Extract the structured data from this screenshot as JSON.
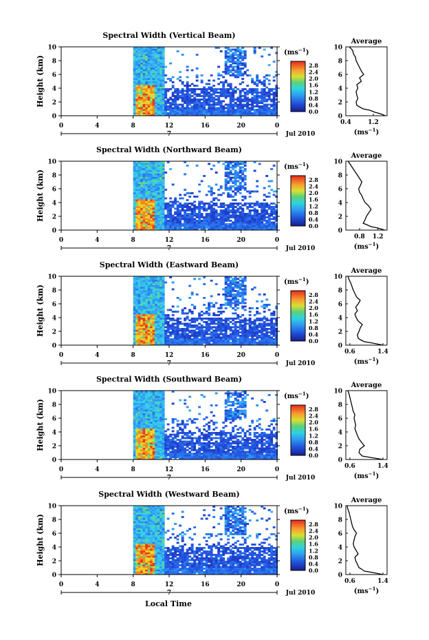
{
  "figure": {
    "x_axis_title": "Local Time",
    "date_label": "Jul 2010",
    "day_marker": "7",
    "unit_label": "(ms",
    "unit_exp": "−1",
    "unit_close": ")",
    "average_title": "Average",
    "colorbar_ticks": [
      "2.8",
      "2.4",
      "2.0",
      "1.6",
      "1.2",
      "0.8",
      "0.4",
      "0.0"
    ]
  },
  "chart_data": [
    {
      "type": "heatmap",
      "title": "Spectral Width (Vertical Beam)",
      "ylabel": "Height (km)",
      "xlabel": "Local Time",
      "x_ticks": [
        "0",
        "4",
        "8",
        "12",
        "16",
        "20",
        "0"
      ],
      "y_ticks": [
        "0",
        "2",
        "4",
        "6",
        "8",
        "10"
      ],
      "xlim": [
        0,
        24
      ],
      "ylim": [
        0,
        10
      ],
      "colorbar": {
        "unit": "ms^-1",
        "range": [
          0.0,
          2.8
        ]
      },
      "data_start_hour": 8.0,
      "profile": {
        "title": "Average",
        "xlabel": "(ms^-1)",
        "x_ticks": [
          "0.4",
          "1.2"
        ],
        "xlim": [
          0.4,
          1.6
        ],
        "ylim": [
          0,
          10
        ],
        "height_km": [
          0.0,
          0.3,
          0.5,
          0.8,
          1.0,
          1.5,
          2.0,
          2.5,
          3.0,
          3.5,
          4.0,
          4.5,
          5.0,
          5.5,
          6.0,
          6.5,
          7.0,
          7.5,
          8.0,
          8.5,
          9.0,
          9.5,
          10.0
        ],
        "width": [
          1.55,
          1.4,
          1.25,
          1.1,
          0.9,
          0.72,
          0.7,
          0.75,
          0.72,
          0.7,
          0.75,
          0.72,
          0.85,
          0.8,
          0.92,
          0.85,
          0.8,
          0.75,
          0.7,
          0.68,
          0.62,
          0.6,
          0.5
        ]
      }
    },
    {
      "type": "heatmap",
      "title": "Spectral Width (Northward Beam)",
      "ylabel": "Height (km)",
      "xlabel": "Local Time",
      "x_ticks": [
        "0",
        "4",
        "8",
        "12",
        "16",
        "20",
        "0"
      ],
      "y_ticks": [
        "0",
        "2",
        "4",
        "6",
        "8",
        "10"
      ],
      "xlim": [
        0,
        24
      ],
      "ylim": [
        0,
        10
      ],
      "colorbar": {
        "unit": "ms^-1",
        "range": [
          0.0,
          2.8
        ]
      },
      "data_start_hour": 8.0,
      "profile": {
        "title": "Average",
        "xlabel": "(ms^-1)",
        "x_ticks": [
          "0.8",
          "1.2"
        ],
        "xlim": [
          0.5,
          1.4
        ],
        "ylim": [
          0,
          10
        ],
        "height_km": [
          0.0,
          0.3,
          0.5,
          0.8,
          1.0,
          1.5,
          2.0,
          2.5,
          3.0,
          3.5,
          4.0,
          4.5,
          5.0,
          5.5,
          6.0,
          6.5,
          7.0,
          7.5,
          8.0,
          8.5,
          9.0,
          9.5,
          10.0
        ],
        "width": [
          1.35,
          1.2,
          1.05,
          0.95,
          0.88,
          0.92,
          0.95,
          1.0,
          1.05,
          1.0,
          0.92,
          0.88,
          0.85,
          0.8,
          0.78,
          0.82,
          0.85,
          0.8,
          0.75,
          0.7,
          0.65,
          0.6,
          0.55
        ]
      }
    },
    {
      "type": "heatmap",
      "title": "Spectral Width (Eastward Beam)",
      "ylabel": "Height (km)",
      "xlabel": "Local Time",
      "x_ticks": [
        "0",
        "4",
        "8",
        "12",
        "16",
        "20",
        "0"
      ],
      "y_ticks": [
        "0",
        "2",
        "4",
        "6",
        "8",
        "10"
      ],
      "xlim": [
        0,
        24
      ],
      "ylim": [
        0,
        10
      ],
      "colorbar": {
        "unit": "ms^-1",
        "range": [
          0.0,
          2.8
        ]
      },
      "data_start_hour": 8.0,
      "profile": {
        "title": "Average",
        "xlabel": "(ms^-1)",
        "x_ticks": [
          "0.6",
          "1.4"
        ],
        "xlim": [
          0.5,
          1.5
        ],
        "ylim": [
          0,
          10
        ],
        "height_km": [
          0.0,
          0.3,
          0.5,
          0.8,
          1.0,
          1.5,
          2.0,
          2.5,
          3.0,
          3.5,
          4.0,
          4.5,
          5.0,
          5.5,
          6.0,
          6.5,
          7.0,
          7.5,
          8.0,
          8.5,
          9.0,
          9.5,
          10.0
        ],
        "width": [
          1.4,
          1.15,
          0.95,
          0.85,
          0.8,
          0.78,
          0.82,
          0.85,
          0.9,
          0.8,
          0.75,
          0.72,
          0.78,
          0.74,
          0.8,
          0.85,
          0.76,
          0.72,
          0.68,
          0.65,
          0.62,
          0.58,
          0.55
        ]
      }
    },
    {
      "type": "heatmap",
      "title": "Spectral Width (Southward Beam)",
      "ylabel": "Height (km)",
      "xlabel": "Local Time",
      "x_ticks": [
        "0",
        "4",
        "8",
        "12",
        "16",
        "20",
        "0"
      ],
      "y_ticks": [
        "0",
        "2",
        "4",
        "6",
        "8",
        "10"
      ],
      "xlim": [
        0,
        24
      ],
      "ylim": [
        0,
        10
      ],
      "colorbar": {
        "unit": "ms^-1",
        "range": [
          0.0,
          2.8
        ]
      },
      "data_start_hour": 8.0,
      "profile": {
        "title": "Average",
        "xlabel": "(ms^-1)",
        "x_ticks": [
          "0.6",
          "1.4"
        ],
        "xlim": [
          0.5,
          1.5
        ],
        "ylim": [
          0,
          10
        ],
        "height_km": [
          0.0,
          0.3,
          0.5,
          0.8,
          1.0,
          1.5,
          2.0,
          2.5,
          3.0,
          3.5,
          4.0,
          4.5,
          5.0,
          5.5,
          6.0,
          6.5,
          7.0,
          7.5,
          8.0,
          8.5,
          9.0,
          9.5,
          10.0
        ],
        "width": [
          1.4,
          1.1,
          0.9,
          0.85,
          0.82,
          0.84,
          0.95,
          0.88,
          0.82,
          0.78,
          0.75,
          0.72,
          0.74,
          0.72,
          0.7,
          0.72,
          0.68,
          0.66,
          0.64,
          0.62,
          0.6,
          0.58,
          0.55
        ]
      }
    },
    {
      "type": "heatmap",
      "title": "Spectral Width (Westward Beam)",
      "ylabel": "Height (km)",
      "xlabel": "Local Time",
      "x_ticks": [
        "0",
        "4",
        "8",
        "12",
        "16",
        "20",
        "0"
      ],
      "y_ticks": [
        "0",
        "2",
        "4",
        "6",
        "8",
        "10"
      ],
      "xlim": [
        0,
        24
      ],
      "ylim": [
        0,
        10
      ],
      "colorbar": {
        "unit": "ms^-1",
        "range": [
          0.0,
          2.8
        ]
      },
      "data_start_hour": 8.0,
      "profile": {
        "title": "Average",
        "xlabel": "(ms^-1)",
        "x_ticks": [
          "0.6",
          "1.4"
        ],
        "xlim": [
          0.5,
          1.5
        ],
        "ylim": [
          0,
          10
        ],
        "height_km": [
          0.0,
          0.3,
          0.5,
          0.8,
          1.0,
          1.5,
          2.0,
          2.5,
          3.0,
          3.5,
          4.0,
          4.5,
          5.0,
          5.5,
          6.0,
          6.5,
          7.0,
          7.5,
          8.0,
          8.5,
          9.0,
          9.5,
          10.0
        ],
        "width": [
          1.4,
          1.15,
          0.95,
          0.88,
          0.82,
          0.78,
          0.74,
          0.72,
          0.8,
          0.75,
          0.7,
          0.68,
          0.7,
          0.72,
          0.76,
          0.7,
          0.66,
          0.64,
          0.62,
          0.6,
          0.58,
          0.55,
          0.53
        ]
      }
    }
  ]
}
